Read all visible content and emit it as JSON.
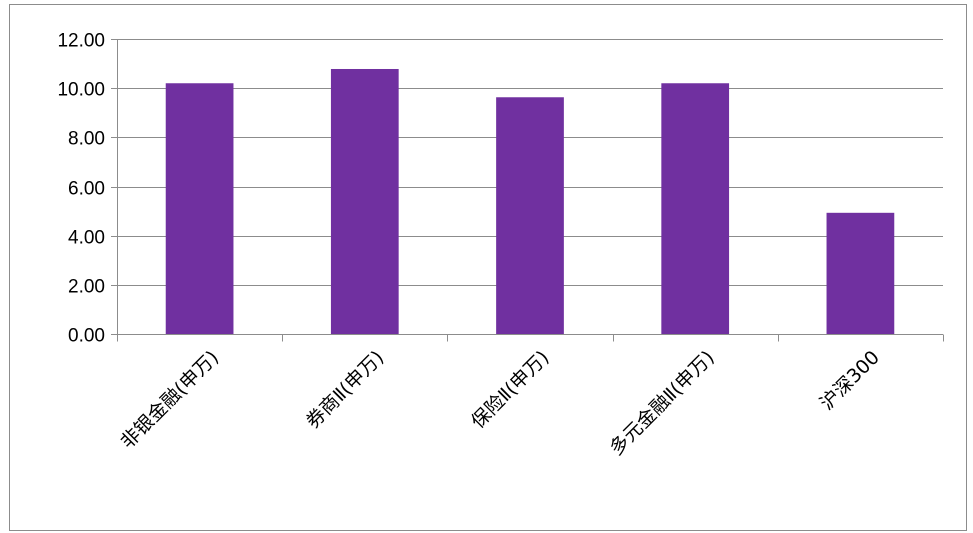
{
  "chart_data": {
    "type": "bar",
    "categories": [
      "非银金融(申万)",
      "券商Ⅱ(申万)",
      "保险Ⅱ(申万)",
      "多元金融Ⅱ(申万)",
      "沪深300"
    ],
    "values": [
      10.2,
      10.78,
      9.63,
      10.2,
      4.93
    ],
    "ylim": [
      0,
      12
    ],
    "yticks": [
      "0.00",
      "2.00",
      "4.00",
      "6.00",
      "8.00",
      "10.00",
      "12.00"
    ],
    "title": "",
    "xlabel": "",
    "ylabel": "",
    "grid": true,
    "legend": "none",
    "bar_color": "#7030a0",
    "grid_color": "#8c8c8c",
    "axis_color": "#8c8c8c"
  }
}
